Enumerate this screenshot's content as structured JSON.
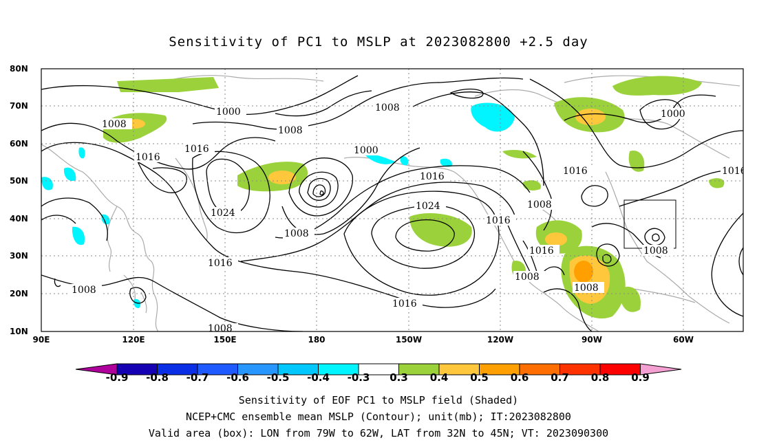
{
  "title": "Sensitivity of PC1 to MSLP at 2023082800 +2.5 day",
  "lat_labels": [
    "80N",
    "70N",
    "60N",
    "50N",
    "40N",
    "30N",
    "20N",
    "10N"
  ],
  "lon_labels": [
    "90E",
    "120E",
    "150E",
    "180",
    "150W",
    "120W",
    "90W",
    "60W"
  ],
  "contour_labels": [
    "1000",
    "1008",
    "1016",
    "1024"
  ],
  "colorbar": {
    "ticks": [
      "-0.9",
      "-0.8",
      "-0.7",
      "-0.6",
      "-0.5",
      "-0.4",
      "-0.3",
      "0.3",
      "0.4",
      "0.5",
      "0.6",
      "0.7",
      "0.8",
      "0.9"
    ],
    "colors": [
      "#b0009b",
      "#1600b4",
      "#0a2ee6",
      "#1e5aff",
      "#2896ff",
      "#00c8ff",
      "#00f5ff",
      "#ffffff",
      "#9bd23c",
      "#ffc83c",
      "#ffa000",
      "#ff6e00",
      "#ff3200",
      "#ff0000",
      "#f5a0d2"
    ]
  },
  "captions": {
    "line1": "Sensitivity of EOF PC1 to MSLP field (Shaded)",
    "line2": "NCEP+CMC ensemble mean MSLP (Contour); unit(mb); IT:2023082800",
    "line3": "Valid area (box): LON from 79W to 62W, LAT from 32N to 45N; VT: 2023090300"
  },
  "shading_colors": {
    "green": "#9bd23c",
    "yellow": "#ffc83c",
    "orange": "#ffa000",
    "cyan": "#00f5ff",
    "coast": "#aaaaaa"
  }
}
